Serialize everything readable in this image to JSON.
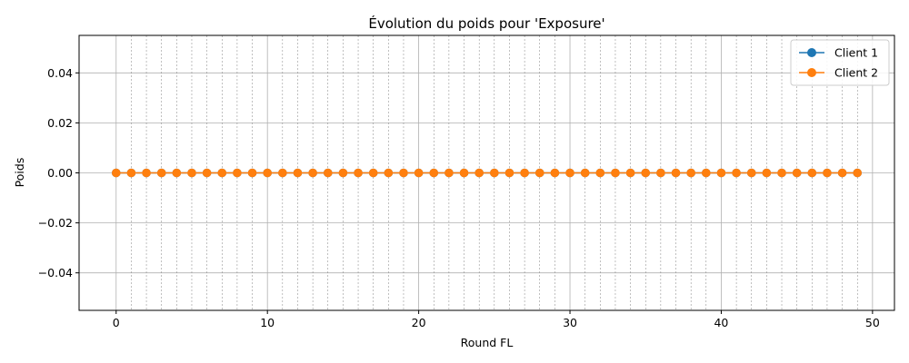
{
  "chart_data": {
    "type": "line",
    "title": "Évolution du poids pour 'Exposure'",
    "xlabel": "Round FL",
    "ylabel": "Poids",
    "xlim": [
      -2.45,
      51.45
    ],
    "ylim": [
      -0.055,
      0.055
    ],
    "x_ticks": [
      0,
      10,
      20,
      30,
      40,
      50
    ],
    "x_tick_labels": [
      "0",
      "10",
      "20",
      "30",
      "40",
      "50"
    ],
    "y_ticks": [
      0.04,
      0.02,
      0.0,
      -0.02,
      -0.04
    ],
    "y_tick_labels": [
      "0.04",
      "0.02",
      "0.00",
      "−0.02",
      "−0.04"
    ],
    "x_minor_gridlines": "every round (1 to 49)",
    "grid": true,
    "legend": "top-right",
    "x": [
      0,
      1,
      2,
      3,
      4,
      5,
      6,
      7,
      8,
      9,
      10,
      11,
      12,
      13,
      14,
      15,
      16,
      17,
      18,
      19,
      20,
      21,
      22,
      23,
      24,
      25,
      26,
      27,
      28,
      29,
      30,
      31,
      32,
      33,
      34,
      35,
      36,
      37,
      38,
      39,
      40,
      41,
      42,
      43,
      44,
      45,
      46,
      47,
      48,
      49
    ],
    "series": [
      {
        "name": "Client 1",
        "color": "#1f77b4",
        "marker": "circle",
        "values": [
          0,
          0,
          0,
          0,
          0,
          0,
          0,
          0,
          0,
          0,
          0,
          0,
          0,
          0,
          0,
          0,
          0,
          0,
          0,
          0,
          0,
          0,
          0,
          0,
          0,
          0,
          0,
          0,
          0,
          0,
          0,
          0,
          0,
          0,
          0,
          0,
          0,
          0,
          0,
          0,
          0,
          0,
          0,
          0,
          0,
          0,
          0,
          0,
          0,
          0
        ]
      },
      {
        "name": "Client 2",
        "color": "#ff7f0e",
        "marker": "circle",
        "values": [
          0,
          0,
          0,
          0,
          0,
          0,
          0,
          0,
          0,
          0,
          0,
          0,
          0,
          0,
          0,
          0,
          0,
          0,
          0,
          0,
          0,
          0,
          0,
          0,
          0,
          0,
          0,
          0,
          0,
          0,
          0,
          0,
          0,
          0,
          0,
          0,
          0,
          0,
          0,
          0,
          0,
          0,
          0,
          0,
          0,
          0,
          0,
          0,
          0,
          0
        ]
      }
    ]
  }
}
